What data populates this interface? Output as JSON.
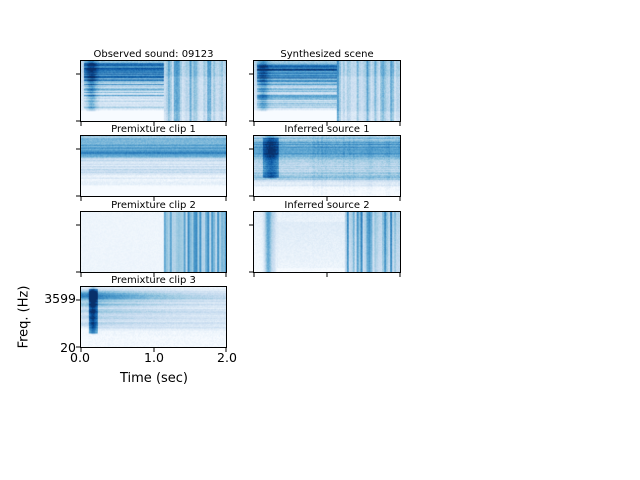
{
  "figure": {
    "axis": {
      "ylabel": "Freq. (Hz)",
      "xlabel": "Time (sec)",
      "yticks": [
        "3599",
        "20"
      ],
      "xticks": [
        "0.0",
        "1.0",
        "2.0"
      ]
    },
    "colormap": "Blues",
    "background": "#ffffff"
  },
  "chart_data": {
    "type": "heatmap",
    "subtype": "spectrogram_grid",
    "colormap": "Blues",
    "colormap_stops": [
      [
        247,
        251,
        255
      ],
      [
        222,
        235,
        247
      ],
      [
        198,
        219,
        239
      ],
      [
        158,
        202,
        225
      ],
      [
        107,
        174,
        214
      ],
      [
        66,
        146,
        198
      ],
      [
        33,
        113,
        181
      ],
      [
        8,
        81,
        156
      ],
      [
        8,
        48,
        107
      ]
    ],
    "x_axis": {
      "label": "Time (sec)",
      "range_sec": [
        0.0,
        2.0
      ],
      "ticks": [
        0.0,
        1.0,
        2.0
      ]
    },
    "y_axis": {
      "label": "Freq. (Hz)",
      "range_hz": [
        20,
        3599
      ],
      "scale": "log",
      "ticks": [
        3599,
        20
      ]
    },
    "panels": [
      {
        "title": "Observed sound: 09123",
        "grid": "row1-left",
        "seed": 11,
        "noise": 0.1,
        "description": "mixture: horizontally striped tonal energy on left ~57% fading toward bottom-left, dense vertical rhythmic stripes on right ~43%",
        "layers": [
          {
            "t": "base",
            "a": 0.07
          },
          {
            "t": "block",
            "x0": 0,
            "x1": 0.57,
            "y0": 0,
            "y1": 0.82,
            "a": 0.15
          },
          {
            "t": "vgrad",
            "x0": 0,
            "x1": 0.57,
            "top": 0.06,
            "bottom": -0.16
          },
          {
            "t": "hstreaks",
            "x0": 0.02,
            "x1": 0.57,
            "y0": 0.02,
            "y1": 0.8,
            "a": 0.4
          },
          {
            "t": "hband",
            "y": 0.1,
            "h": 0.07,
            "a": 0.3,
            "x0": 0.02,
            "x1": 0.57
          },
          {
            "t": "hband",
            "y": 0.24,
            "h": 0.08,
            "a": 0.22,
            "x0": 0.02,
            "x1": 0.57
          },
          {
            "t": "vline",
            "x": 0.07,
            "w": 0.025,
            "a": 0.3,
            "y1": 0.85
          },
          {
            "t": "vstripes",
            "x0": 0.57,
            "x1": 1,
            "a": 0.5
          },
          {
            "t": "block",
            "x0": 0.57,
            "x1": 1,
            "y0": 0,
            "y1": 0.25,
            "a": 0.06
          },
          {
            "t": "block",
            "x0": 0.57,
            "x1": 1,
            "y0": 0.85,
            "y1": 1,
            "a": -0.06
          }
        ]
      },
      {
        "title": "Synthesized scene",
        "grid": "row1-right",
        "seed": 23,
        "noise": 0.1,
        "description": "reconstruction of observed mixture: same structure as observed sound",
        "layers": [
          {
            "t": "base",
            "a": 0.08
          },
          {
            "t": "block",
            "x0": 0,
            "x1": 0.57,
            "y0": 0,
            "y1": 0.82,
            "a": 0.15
          },
          {
            "t": "vgrad",
            "x0": 0,
            "x1": 0.57,
            "top": 0.06,
            "bottom": -0.16
          },
          {
            "t": "hstreaks",
            "x0": 0.02,
            "x1": 0.57,
            "y0": 0.02,
            "y1": 0.8,
            "a": 0.4
          },
          {
            "t": "hband",
            "y": 0.12,
            "h": 0.07,
            "a": 0.28,
            "x0": 0.02,
            "x1": 0.57
          },
          {
            "t": "hband",
            "y": 0.26,
            "h": 0.08,
            "a": 0.2,
            "x0": 0.02,
            "x1": 0.57
          },
          {
            "t": "vline",
            "x": 0.06,
            "w": 0.025,
            "a": 0.25,
            "y1": 0.85
          },
          {
            "t": "vstripes",
            "x0": 0.57,
            "x1": 1,
            "a": 0.5
          },
          {
            "t": "block",
            "x0": 0.57,
            "x1": 1,
            "y0": 0,
            "y1": 0.25,
            "a": 0.06
          },
          {
            "t": "block",
            "x0": 0.57,
            "x1": 1,
            "y0": 0.85,
            "y1": 1,
            "a": -0.06
          }
        ]
      },
      {
        "title": "Premixture clip 1",
        "grid": "row2-left",
        "seed": 37,
        "noise": 0.09,
        "description": "steady broadband noise-like source, darker horizontal band near top, fades to white at bottom",
        "layers": [
          {
            "t": "base",
            "a": 0.05
          },
          {
            "t": "vgrad",
            "top": 0.2,
            "bottom": -0.12
          },
          {
            "t": "hband",
            "y": 0.18,
            "h": 0.1,
            "a": 0.28
          },
          {
            "t": "hband",
            "y": 0.3,
            "h": 0.045,
            "a": 0.26
          },
          {
            "t": "hstreaks",
            "y0": 0,
            "y1": 0.85,
            "a": 0.16
          },
          {
            "t": "hband",
            "y": 0.6,
            "h": 0.035,
            "a": 0.14
          }
        ]
      },
      {
        "title": "Inferred source 1",
        "grid": "row2-right",
        "seed": 41,
        "noise": 0.11,
        "description": "inferred steady source matching premixture clip 1, with dark onset blob near t=0.2s and band near top",
        "layers": [
          {
            "t": "base",
            "a": 0.1
          },
          {
            "t": "vgrad",
            "top": 0.16,
            "bottom": -0.14
          },
          {
            "t": "block",
            "x0": 0.06,
            "x1": 0.17,
            "y0": 0.02,
            "y1": 0.7,
            "a": 0.28
          },
          {
            "t": "vline",
            "x": 0.115,
            "w": 0.03,
            "a": 0.22,
            "y1": 0.72
          },
          {
            "t": "hband",
            "y": 0.13,
            "h": 0.06,
            "a": 0.18
          },
          {
            "t": "hband",
            "y": 0.28,
            "h": 0.08,
            "a": 0.32
          },
          {
            "t": "hband",
            "y": 0.58,
            "h": 0.12,
            "a": 0.14
          },
          {
            "t": "hband",
            "y": 0.7,
            "h": 0.04,
            "a": 0.2
          },
          {
            "t": "hstreaks",
            "y0": 0,
            "y1": 0.85,
            "a": 0.16
          },
          {
            "t": "vstripes",
            "x0": 0.4,
            "x1": 1,
            "a": 0.07
          }
        ]
      },
      {
        "title": "Premixture clip 2",
        "grid": "row3-left",
        "seed": 53,
        "noise": 0.045,
        "description": "silent until ~1.15s, then dense dark vertical rhythmic stripes across all frequencies",
        "layers": [
          {
            "t": "base",
            "a": 0.045
          },
          {
            "t": "block",
            "x0": 0.57,
            "x1": 1,
            "y0": 0,
            "y1": 1,
            "a": 0.1
          },
          {
            "t": "vstripes",
            "x0": 0.57,
            "x1": 1,
            "a": 0.6
          }
        ]
      },
      {
        "title": "Inferred source 2",
        "grid": "row3-right",
        "seed": 67,
        "noise": 0.075,
        "description": "inferred rhythmic source: dark vertical stripe near t=0.2s, faint middle, dense vertical stripes after ~1.25s",
        "layers": [
          {
            "t": "base",
            "a": 0.05
          },
          {
            "t": "vline",
            "x": 0.095,
            "w": 0.018,
            "a": 0.5
          },
          {
            "t": "vline",
            "x": 0.135,
            "w": 0.012,
            "a": 0.15
          },
          {
            "t": "block",
            "x0": 0.15,
            "x1": 0.62,
            "y0": 0.15,
            "y1": 0.95,
            "a": 0.05
          },
          {
            "t": "block",
            "x0": 0.62,
            "x1": 1,
            "y0": 0,
            "y1": 1,
            "a": 0.07
          },
          {
            "t": "vstripes",
            "x0": 0.62,
            "x1": 1,
            "a": 0.55
          },
          {
            "t": "vgrad",
            "top": 0.03,
            "bottom": -0.05
          }
        ]
      },
      {
        "title": "Premixture clip 3",
        "grid": "row4-left",
        "seed": 79,
        "noise": 0.085,
        "description": "impulsive onset near t=0.15s with dark harmonic bands decaying over time; strongest band near 3599 Hz; bottom fades to white",
        "layers": [
          {
            "t": "base",
            "a": 0.035
          },
          {
            "t": "block",
            "x0": 0,
            "x1": 0.045,
            "y0": 0,
            "y1": 1,
            "a": -0.03
          },
          {
            "t": "block",
            "x0": 0.05,
            "x1": 0.11,
            "y0": 0.02,
            "y1": 0.78,
            "a": 0.42
          },
          {
            "t": "vline",
            "x": 0.08,
            "w": 0.015,
            "a": 0.25,
            "y1": 0.8
          },
          {
            "t": "hband",
            "y": 0.14,
            "h": 0.07,
            "a": 0.68,
            "xs": 0.05,
            "k": 1.5
          },
          {
            "t": "hband",
            "y": 0.3,
            "h": 0.035,
            "a": 0.34,
            "xs": 0.05,
            "k": 1.5
          },
          {
            "t": "hband",
            "y": 0.4,
            "h": 0.03,
            "a": 0.3,
            "xs": 0.05,
            "k": 1.3
          },
          {
            "t": "hband",
            "y": 0.5,
            "h": 0.035,
            "a": 0.28,
            "xs": 0.05,
            "k": 1.1
          },
          {
            "t": "hband",
            "y": 0.62,
            "h": 0.04,
            "a": 0.26,
            "xs": 0.05,
            "k": 0.9
          },
          {
            "t": "hstreaks",
            "x0": 0.05,
            "x1": 1,
            "y0": 0.06,
            "y1": 0.76,
            "a": 0.13
          },
          {
            "t": "block",
            "x0": 0,
            "x1": 1,
            "y0": 0.82,
            "y1": 1,
            "a": -0.02
          }
        ]
      }
    ]
  }
}
